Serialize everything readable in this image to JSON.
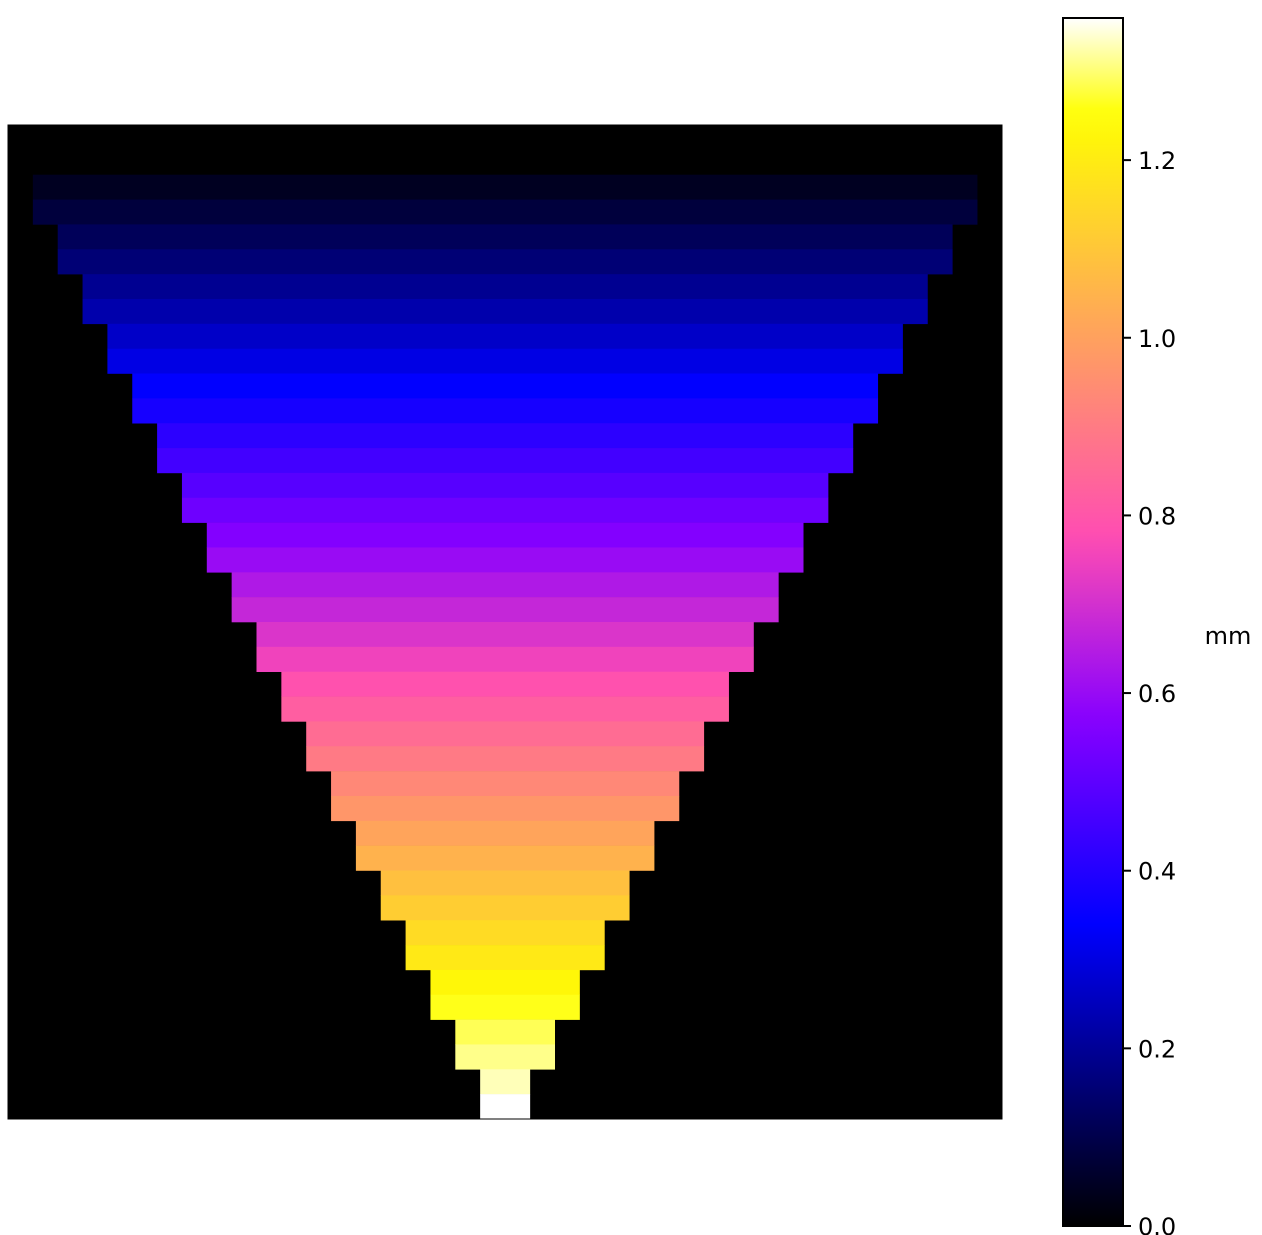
{
  "chart_data": {
    "type": "heatmap",
    "description_of_grid": "40 columns x 40 rows; masked cells drawn black",
    "colormap": "gnuplot2",
    "vmin": 0.0,
    "vmax": 1.36,
    "background_color": "#000000",
    "row_values": [
      0.0,
      0.0,
      0.044,
      0.081,
      0.119,
      0.156,
      0.193,
      0.23,
      0.267,
      0.304,
      0.341,
      0.378,
      0.415,
      0.452,
      0.489,
      0.527,
      0.564,
      0.601,
      0.638,
      0.675,
      0.712,
      0.749,
      0.786,
      0.823,
      0.86,
      0.897,
      0.934,
      0.971,
      1.008,
      1.045,
      1.082,
      1.119,
      1.156,
      1.193,
      1.23,
      1.262,
      1.288,
      1.31,
      1.33,
      1.36
    ],
    "row_col_ranges": [
      null,
      [
        0,
        39
      ],
      [
        1,
        38
      ],
      [
        1,
        38
      ],
      [
        2,
        37
      ],
      [
        2,
        37
      ],
      [
        3,
        36
      ],
      [
        3,
        36
      ],
      [
        4,
        35
      ],
      [
        4,
        35
      ],
      [
        5,
        34
      ],
      [
        5,
        34
      ],
      [
        6,
        33
      ],
      [
        6,
        33
      ],
      [
        7,
        32
      ],
      [
        7,
        32
      ],
      [
        8,
        31
      ],
      [
        8,
        31
      ],
      [
        9,
        30
      ],
      [
        9,
        30
      ],
      [
        10,
        29
      ],
      [
        10,
        29
      ],
      [
        11,
        28
      ],
      [
        11,
        28
      ],
      [
        12,
        27
      ],
      [
        12,
        27
      ],
      [
        13,
        26
      ],
      [
        13,
        26
      ],
      [
        14,
        25
      ],
      [
        14,
        25
      ],
      [
        15,
        24
      ],
      [
        15,
        24
      ],
      [
        16,
        23
      ],
      [
        16,
        23
      ],
      [
        17,
        22
      ],
      [
        17,
        22
      ],
      [
        18,
        21
      ],
      [
        18,
        21
      ],
      [
        19,
        20
      ],
      [
        19,
        20
      ]
    ],
    "colorbar": {
      "label": "mm",
      "ticks": [
        0.0,
        0.2,
        0.4,
        0.6,
        0.8,
        1.0,
        1.2
      ],
      "tick_labels": [
        "0.0",
        "0.2",
        "0.4",
        "0.6",
        "0.8",
        "1.0",
        "1.2"
      ]
    }
  }
}
